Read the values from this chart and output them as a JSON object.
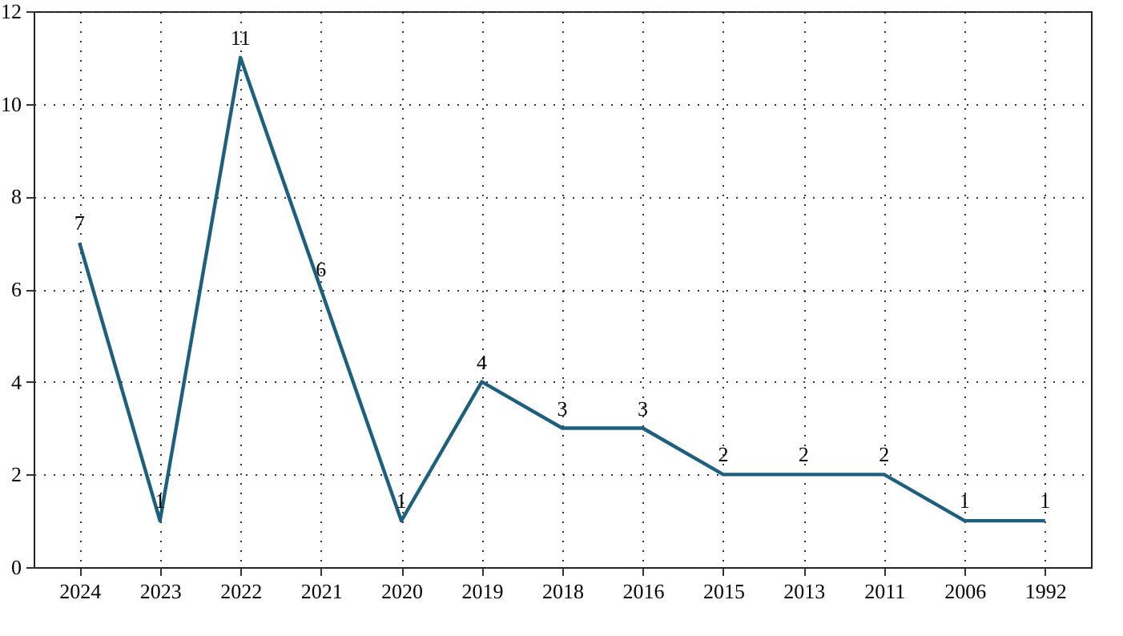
{
  "chart_data": {
    "type": "line",
    "categories": [
      "2024",
      "2023",
      "2022",
      "2021",
      "2020",
      "2019",
      "2018",
      "2016",
      "2015",
      "2013",
      "2011",
      "2006",
      "1992"
    ],
    "series": [
      {
        "color": "#1f5f7e",
        "values": [
          7,
          1,
          11,
          6,
          1,
          4,
          3,
          3,
          2,
          2,
          2,
          1,
          1
        ]
      }
    ],
    "ylim": [
      0,
      12
    ],
    "yticks": [
      0,
      2,
      4,
      6,
      8,
      10,
      12
    ],
    "grid": true,
    "data_labels": true,
    "marker": "none",
    "line_style": "solid"
  }
}
